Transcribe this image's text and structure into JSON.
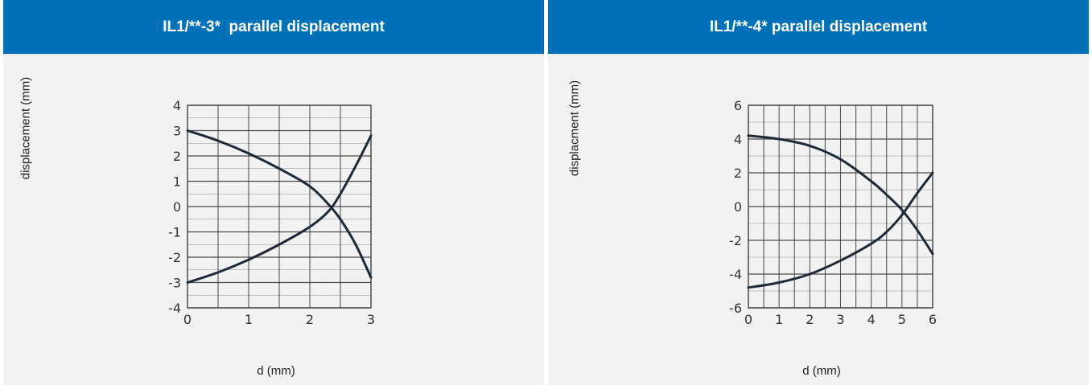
{
  "chart_data": [
    {
      "type": "line",
      "title": "IL1/**-3*  parallel displacement",
      "xlabel": "d (mm)",
      "ylabel": "displacement (mm)",
      "xlim": [
        0,
        3
      ],
      "ylim": [
        -4,
        4
      ],
      "x_ticks": [
        "0",
        "1",
        "2",
        "3"
      ],
      "y_ticks": [
        "4",
        "3",
        "2",
        "1",
        "0",
        "-1",
        "-2",
        "-3",
        "-4"
      ],
      "grid": true,
      "series": [
        {
          "x": [
            0,
            0.5,
            1.0,
            1.5,
            2.0,
            2.3,
            2.5,
            2.75,
            3.0
          ],
          "values": [
            3.0,
            2.6,
            2.1,
            1.5,
            0.8,
            0.1,
            -0.5,
            -1.5,
            -2.8
          ]
        },
        {
          "x": [
            0,
            0.5,
            1.0,
            1.5,
            2.0,
            2.3,
            2.5,
            2.75,
            3.0
          ],
          "values": [
            -3.0,
            -2.6,
            -2.1,
            -1.5,
            -0.8,
            -0.2,
            0.5,
            1.6,
            2.8
          ]
        }
      ]
    },
    {
      "type": "line",
      "title": "IL1/**-4* parallel displacement",
      "xlabel": "d (mm)",
      "ylabel": "displacment (mm)",
      "xlim": [
        0,
        6
      ],
      "ylim": [
        -6,
        6
      ],
      "x_ticks": [
        "0",
        "1",
        "2",
        "3",
        "4",
        "5",
        "6"
      ],
      "y_ticks": [
        "6",
        "4",
        "2",
        "0",
        "-2",
        "-4",
        "-6"
      ],
      "grid": true,
      "series": [
        {
          "x": [
            0,
            1,
            2,
            3,
            4,
            4.5,
            5,
            5.5,
            6
          ],
          "values": [
            4.2,
            4.0,
            3.6,
            2.8,
            1.5,
            0.7,
            -0.2,
            -1.4,
            -2.8
          ]
        },
        {
          "x": [
            0,
            1,
            2,
            3,
            4,
            4.5,
            5,
            5.5,
            6
          ],
          "values": [
            -4.8,
            -4.5,
            -4.0,
            -3.2,
            -2.2,
            -1.5,
            -0.5,
            0.8,
            2.0
          ]
        }
      ]
    }
  ],
  "colors": {
    "header": "#0070b8",
    "panel": "#f2f2f2",
    "line": "#1e2a38",
    "grid": "#3a3a3a"
  }
}
